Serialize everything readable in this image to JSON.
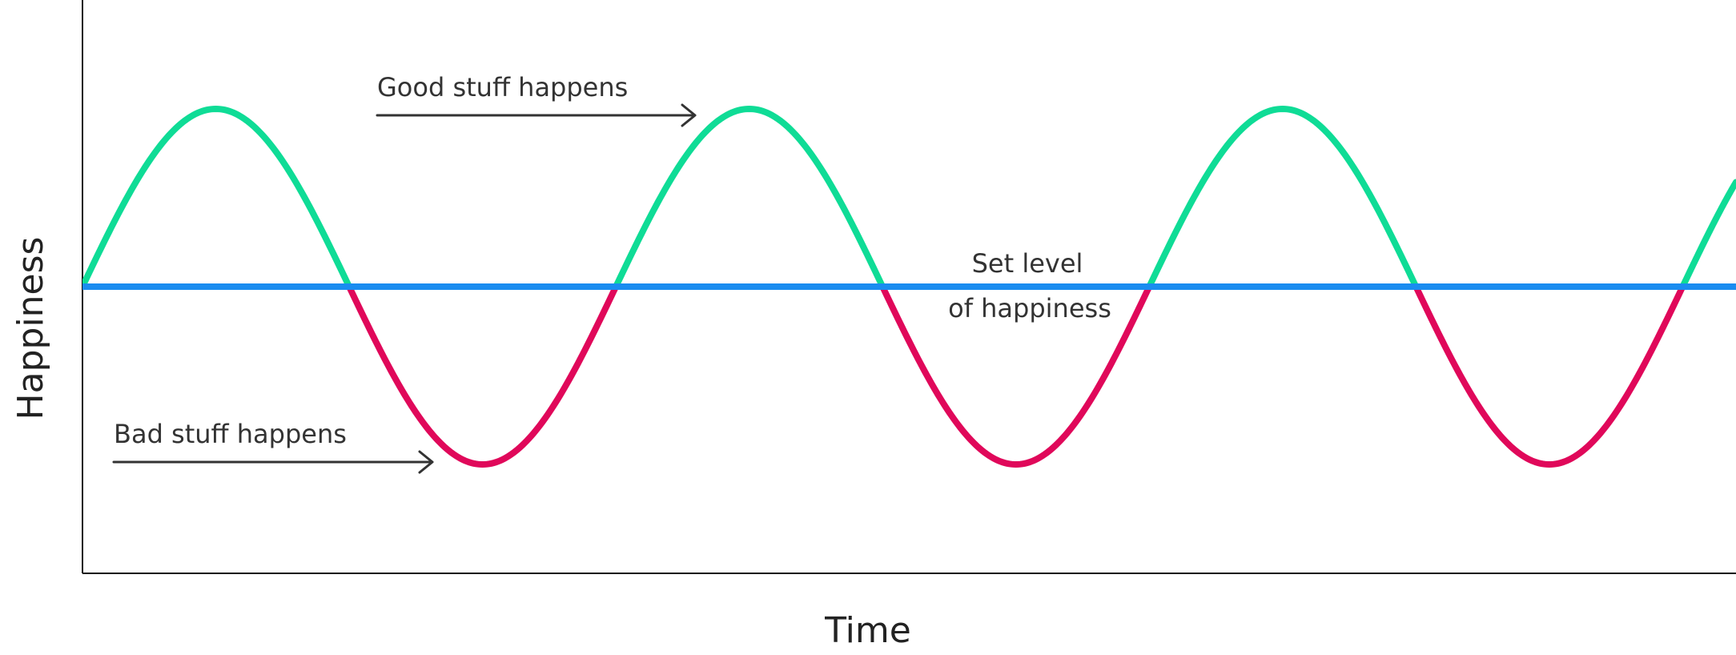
{
  "chart_data": {
    "type": "line",
    "xlabel": "Time",
    "ylabel": "Happiness",
    "annotations": {
      "good": "Good stuff happens",
      "bad": "Bad stuff happens",
      "set_line1": "Set level",
      "set_line2": "of happiness"
    },
    "series": [
      {
        "name": "Set level of happiness",
        "color": "#1a8cf0",
        "shape": "constant",
        "value": 0
      },
      {
        "name": "Happiness",
        "shape": "sine",
        "amplitude": 1,
        "period": 2,
        "x_range": [
          0,
          6.2
        ],
        "color_above": "#0fdc96",
        "color_below": "#e0085a"
      }
    ],
    "ylim": [
      -1.6,
      1.6
    ],
    "xlim": [
      0,
      6.2
    ],
    "ticks": "none",
    "grid": false,
    "legend": "none"
  }
}
